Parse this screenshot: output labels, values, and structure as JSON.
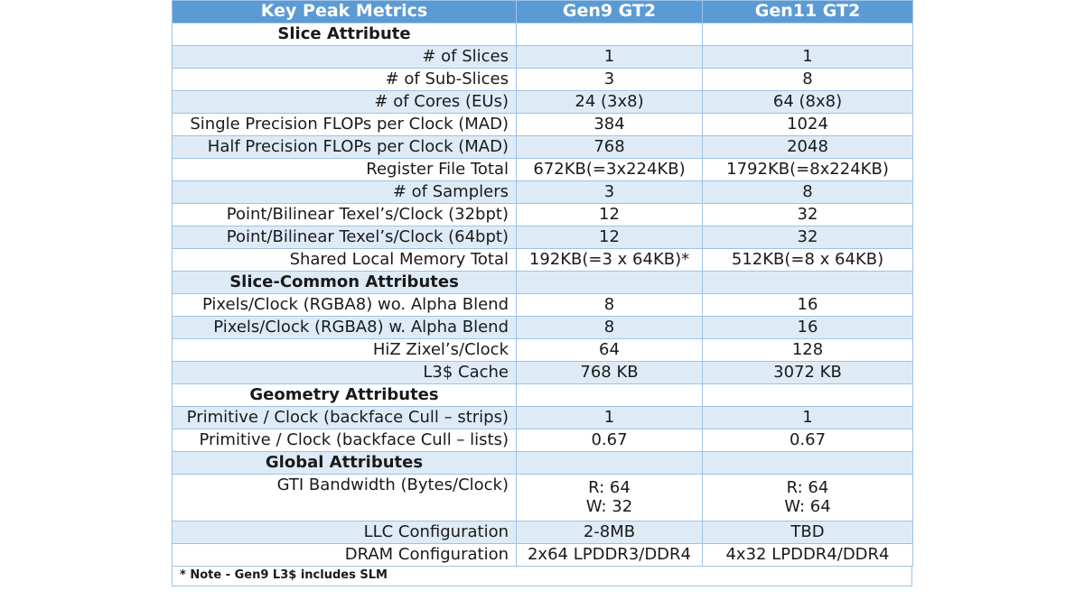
{
  "header": {
    "col0": "Key Peak Metrics",
    "col1": "Gen9 GT2",
    "col2": "Gen11 GT2"
  },
  "rows": [
    {
      "type": "section",
      "label": "Slice Attribute"
    },
    {
      "type": "data",
      "label": "# of Slices",
      "gen9": "1",
      "gen11": "1"
    },
    {
      "type": "data",
      "label": "# of Sub-Slices",
      "gen9": "3",
      "gen11": "8"
    },
    {
      "type": "data",
      "label": "# of Cores (EUs)",
      "gen9": "24 (3x8)",
      "gen11": "64 (8x8)"
    },
    {
      "type": "data",
      "label": "Single Precision FLOPs per Clock (MAD)",
      "gen9": "384",
      "gen11": "1024"
    },
    {
      "type": "data",
      "label": "Half Precision FLOPs per Clock (MAD)",
      "gen9": "768",
      "gen11": "2048"
    },
    {
      "type": "data",
      "label": "Register File Total",
      "gen9": "672KB(=3x224KB)",
      "gen11": "1792KB(=8x224KB)"
    },
    {
      "type": "data",
      "label": "# of Samplers",
      "gen9": "3",
      "gen11": "8"
    },
    {
      "type": "data",
      "label": "Point/Bilinear Texel’s/Clock (32bpt)",
      "gen9": "12",
      "gen11": "32"
    },
    {
      "type": "data",
      "label": "Point/Bilinear Texel’s/Clock (64bpt)",
      "gen9": "12",
      "gen11": "32"
    },
    {
      "type": "data",
      "label": "Shared Local Memory Total",
      "gen9": "192KB(=3 x 64KB)*",
      "gen11": "512KB(=8 x 64KB)"
    },
    {
      "type": "section",
      "label": "Slice-Common Attributes"
    },
    {
      "type": "data",
      "label": "Pixels/Clock (RGBA8) wo. Alpha Blend",
      "gen9": "8",
      "gen11": "16"
    },
    {
      "type": "data",
      "label": "Pixels/Clock (RGBA8) w. Alpha Blend",
      "gen9": "8",
      "gen11": "16"
    },
    {
      "type": "data",
      "label": "HiZ Zixel’s/Clock",
      "gen9": "64",
      "gen11": "128"
    },
    {
      "type": "data",
      "label": "L3$ Cache",
      "gen9": "768 KB",
      "gen11": "3072 KB"
    },
    {
      "type": "section",
      "label": "Geometry Attributes"
    },
    {
      "type": "data",
      "label": "Primitive / Clock (backface Cull – strips)",
      "gen9": "1",
      "gen11": "1"
    },
    {
      "type": "data",
      "label": "Primitive / Clock (backface Cull – lists)",
      "gen9": "0.67",
      "gen11": "0.67"
    },
    {
      "type": "section",
      "label": "Global Attributes"
    },
    {
      "type": "tall",
      "label": "GTI Bandwidth (Bytes/Clock)",
      "gen9": [
        "R: 64",
        "W: 32"
      ],
      "gen11": [
        "R: 64",
        "W: 64"
      ]
    },
    {
      "type": "data",
      "label": "LLC Configuration",
      "gen9": "2-8MB",
      "gen11": "TBD"
    },
    {
      "type": "data",
      "label": "DRAM Configuration",
      "gen9": "2x64 LPDDR3/DDR4",
      "gen11": "4x32 LPDDR4/DDR4"
    }
  ],
  "note": "* Note - Gen9 L3$ includes SLM",
  "colors": {
    "header_bg": "#5b9bd5",
    "band_bg": "#deebf7",
    "border": "#9dc3e6"
  }
}
